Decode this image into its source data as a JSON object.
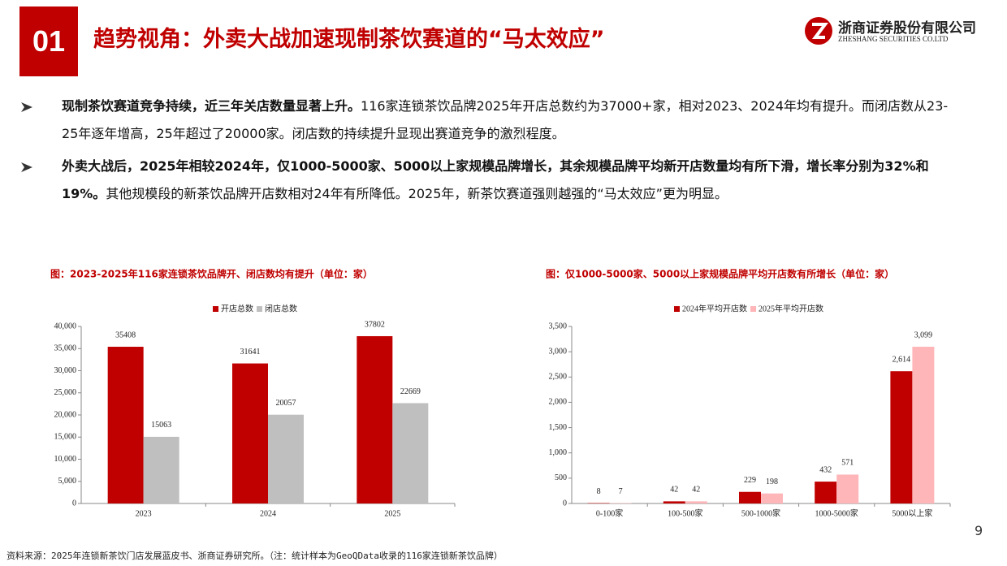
{
  "header": {
    "number": "01",
    "title": "趋势视角：外卖大战加速现制茶饮赛道的“马太效应”",
    "company": "浙商证券股份有限公司",
    "company_en": "ZHESHANG SECURITIES CO.LTD"
  },
  "bullets": [
    {
      "bold": "现制茶饮赛道竞争持续，近三年关店数量显著上升。",
      "text": "116家连锁茶饮品牌2025年开店总数约为37000+家，相对2023、2024年均有提升。而闭店数从23-25年逐年增高，25年超过了20000家。闭店数的持续提升显现出赛道竞争的激烈程度。"
    },
    {
      "bold": "外卖大战后，2025年相较2024年，仅1000-5000家、5000以上家规模品牌增长，其余规模品牌平均新开店数量均有所下滑，增长率分别为32%和19%。",
      "text": "其他规模段的新茶饮品牌开店数相对24年有所降低。2025年，新茶饮赛道强则越强的“马太效应”更为明显。"
    }
  ],
  "chart_data": [
    {
      "type": "bar",
      "title": "图：2023-2025年116家连锁茶饮品牌开、闭店数均有提升（单位：家）",
      "categories": [
        "2023",
        "2024",
        "2025"
      ],
      "series": [
        {
          "name": "开店总数",
          "color": "#c00000",
          "values": [
            35408,
            31641,
            37802
          ]
        },
        {
          "name": "闭店总数",
          "color": "#bfbfbf",
          "values": [
            15063,
            20057,
            22669
          ]
        }
      ],
      "ylim": [
        0,
        40000
      ],
      "yticks": [
        0,
        {
          "value": 5000,
          "label": "5,000"
        },
        {
          "value": 10000,
          "label": "10,000"
        },
        {
          "value": 15000,
          "label": "15,000"
        },
        {
          "value": 20000,
          "label": "20,000"
        },
        {
          "value": 25000,
          "label": "25,000"
        },
        {
          "value": 30000,
          "label": "30,000"
        },
        {
          "value": 35000,
          "label": "35,000"
        },
        {
          "value": 40000,
          "label": "40,000"
        }
      ]
    },
    {
      "type": "bar",
      "title": "图：仅1000-5000家、5000以上家规模品牌平均开店数有所增长（单位：家）",
      "categories": [
        "0-100家",
        "100-500家",
        "500-1000家",
        "1000-5000家",
        "5000以上家"
      ],
      "series": [
        {
          "name": "2024年平均开店数",
          "color": "#c00000",
          "values": [
            8,
            42,
            229,
            432,
            2614
          ],
          "value_labels": [
            "8",
            "42",
            "229",
            "432",
            "2,614"
          ]
        },
        {
          "name": "2025年平均开店数",
          "color": "#ffb6b9",
          "values": [
            7,
            42,
            198,
            571,
            3099
          ],
          "value_labels": [
            "7",
            "42",
            "198",
            "571",
            "3,099"
          ]
        }
      ],
      "ylim": [
        0,
        3500
      ],
      "yticks": [
        0,
        500,
        {
          "value": 1000,
          "label": "1,000"
        },
        {
          "value": 1500,
          "label": "1,500"
        },
        {
          "value": 2000,
          "label": "2,000"
        },
        {
          "value": 2500,
          "label": "2,500"
        },
        {
          "value": 3000,
          "label": "3,000"
        },
        {
          "value": 3500,
          "label": "3,500"
        }
      ]
    }
  ],
  "source": "资料来源：2025年连锁新茶饮门店发展蓝皮书、浙商证券研究所。（注：统计样本为GeoQData收录的116家连锁新茶饮品牌）",
  "page_number": "9"
}
